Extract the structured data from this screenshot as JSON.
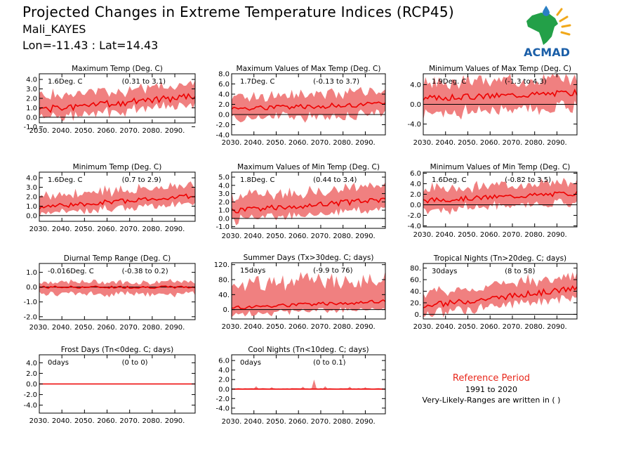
{
  "header": {
    "title": "Projected Changes in Extreme Temperature Indices (RCP45)",
    "location": "Mali_KAYES",
    "coordinates": "Lon=-11.43 : Lat=14.43"
  },
  "logo": {
    "label": "ACMAD"
  },
  "reference": {
    "title": "Reference Period",
    "years": "1991 to 2020",
    "note": "Very-Likely-Ranges are written in ( )"
  },
  "colors": {
    "band": "#f08080",
    "median": "#ee0000",
    "zero_line": "#000000",
    "ref_title": "#e8281c"
  },
  "chart_data": [
    {
      "type": "area",
      "title": "Maximum Temp (Deg. C)",
      "summary": "1.6Deg. C",
      "range": "(0.31 to 3.1)",
      "xlim": [
        2030,
        2099
      ],
      "ylim": [
        -0.6,
        4.6
      ],
      "yticks": [
        -1.0,
        0.0,
        1.0,
        2.0,
        3.0,
        4.0
      ],
      "x_start": 2030,
      "x_end": 2099,
      "xticks": [
        2030,
        2040,
        2050,
        2060,
        2070,
        2080,
        2090
      ],
      "median_start": 0.8,
      "median_end": 2.2,
      "band_low": 0.9,
      "band_high": 1.3,
      "wiggle": 0.35,
      "seed": 1
    },
    {
      "type": "area",
      "title": "Maximum Values of Max Temp (Deg. C)",
      "summary": "1.7Deg. C",
      "range": "(-0.13 to 3.7)",
      "xlim": [
        2030,
        2099
      ],
      "ylim": [
        -4.0,
        8.0
      ],
      "yticks": [
        -4.0,
        -2.0,
        0.0,
        2.0,
        4.0,
        6.0,
        8.0
      ],
      "x_start": 2030,
      "x_end": 2099,
      "xticks": [
        2030,
        2040,
        2050,
        2060,
        2070,
        2080,
        2090
      ],
      "median_start": 1.2,
      "median_end": 2.0,
      "band_low": 2.0,
      "band_high": 2.4,
      "wiggle": 0.5,
      "seed": 2
    },
    {
      "type": "area",
      "title": "Minimum Values of Max Temp (Deg. C)",
      "summary": "1.9Deg. C",
      "range": "(-1.3 to 4.3)",
      "xlim": [
        2030,
        2099
      ],
      "ylim": [
        -6.2,
        6.2
      ],
      "yticks": [
        -4.0,
        0.0,
        4.0
      ],
      "x_start": 2030,
      "x_end": 2099,
      "xticks": [
        2030,
        2040,
        2050,
        2060,
        2070,
        2080,
        2090
      ],
      "median_start": 1.2,
      "median_end": 2.4,
      "band_low": 3.0,
      "band_high": 3.0,
      "wiggle": 0.6,
      "seed": 3
    },
    {
      "type": "area",
      "title": "Minimum Temp (Deg. C)",
      "summary": "1.6Deg. C",
      "range": "(0.7 to 2.9)",
      "xlim": [
        2030,
        2099
      ],
      "ylim": [
        -0.6,
        4.6
      ],
      "yticks": [
        0.0,
        1.0,
        2.0,
        3.0,
        4.0
      ],
      "x_start": 2030,
      "x_end": 2099,
      "xticks": [
        2030,
        2040,
        2050,
        2060,
        2070,
        2080,
        2090
      ],
      "median_start": 0.9,
      "median_end": 2.1,
      "band_low": 0.7,
      "band_high": 1.2,
      "wiggle": 0.25,
      "seed": 4
    },
    {
      "type": "area",
      "title": "Maximum Values of Min Temp (Deg. C)",
      "summary": "1.8Deg. C",
      "range": "(0.44 to 3.4)",
      "xlim": [
        2030,
        2099
      ],
      "ylim": [
        -1.2,
        5.6
      ],
      "yticks": [
        -1.0,
        0.0,
        1.0,
        2.0,
        3.0,
        4.0,
        5.0
      ],
      "x_start": 2030,
      "x_end": 2099,
      "xticks": [
        2030,
        2040,
        2050,
        2060,
        2070,
        2080,
        2090
      ],
      "median_start": 0.9,
      "median_end": 2.3,
      "band_low": 1.1,
      "band_high": 1.6,
      "wiggle": 0.35,
      "seed": 5
    },
    {
      "type": "area",
      "title": "Minimum Values of Min Temp (Deg. C)",
      "summary": "1.6Deg. C",
      "range": "(-0.82 to 3.5)",
      "xlim": [
        2030,
        2099
      ],
      "ylim": [
        -4.2,
        6.2
      ],
      "yticks": [
        -4.0,
        -2.0,
        0.0,
        2.0,
        4.0,
        6.0
      ],
      "x_start": 2030,
      "x_end": 2099,
      "xticks": [
        2030,
        2040,
        2050,
        2060,
        2070,
        2080,
        2090
      ],
      "median_start": 0.8,
      "median_end": 2.2,
      "band_low": 1.8,
      "band_high": 2.2,
      "wiggle": 0.45,
      "seed": 6
    },
    {
      "type": "area",
      "title": "Diurnal Temp Range (Deg. C)",
      "summary": "-0.016Deg. C",
      "range": "(-0.38 to 0.2)",
      "xlim": [
        2030,
        2099
      ],
      "ylim": [
        -2.2,
        1.6
      ],
      "yticks": [
        -2.0,
        -1.0,
        0.0,
        1.0
      ],
      "x_start": 2030,
      "x_end": 2099,
      "xticks": [
        2030,
        2040,
        2050,
        2060,
        2070,
        2080,
        2090
      ],
      "median_start": 0.0,
      "median_end": 0.0,
      "band_low": 0.45,
      "band_high": 0.35,
      "wiggle": 0.08,
      "seed": 7
    },
    {
      "type": "area",
      "title": "Summer Days (Tx>30deg. C; days)",
      "summary": "15days",
      "range": "(-9.9 to 76)",
      "xlim": [
        2030,
        2099
      ],
      "ylim": [
        -25,
        125
      ],
      "yticks": [
        0,
        40,
        80,
        120
      ],
      "x_start": 2030,
      "x_end": 2099,
      "xticks": [
        2030,
        2040,
        2050,
        2060,
        2070,
        2080,
        2090
      ],
      "median_start": 5,
      "median_end": 22,
      "band_low": 18,
      "band_high": 60,
      "wiggle": 5,
      "seed": 8
    },
    {
      "type": "area",
      "title": "Tropical Nights (Tn>20deg. C; days)",
      "summary": "30days",
      "range": "(8 to 58)",
      "xlim": [
        2030,
        2099
      ],
      "ylim": [
        -8,
        88
      ],
      "yticks": [
        0,
        20,
        40,
        60,
        80
      ],
      "x_start": 2030,
      "x_end": 2099,
      "xticks": [
        2030,
        2040,
        2050,
        2060,
        2070,
        2080,
        2090
      ],
      "median_start": 14,
      "median_end": 45,
      "band_low": 14,
      "band_high": 22,
      "wiggle": 5,
      "seed": 9
    },
    {
      "type": "area",
      "title": "Frost Days (Tn<0deg. C; days)",
      "summary": "0days",
      "range": "(0 to 0)",
      "xlim": [
        2030,
        2099
      ],
      "ylim": [
        -5.5,
        5.5
      ],
      "yticks": [
        -4.0,
        -2.0,
        0.0,
        2.0,
        4.0
      ],
      "x_start": 2030,
      "x_end": 2099,
      "xticks": [
        2030,
        2040,
        2050,
        2060,
        2070,
        2080,
        2090
      ],
      "median_start": 0,
      "median_end": 0,
      "band_low": 0,
      "band_high": 0,
      "wiggle": 0,
      "seed": 10
    },
    {
      "type": "area",
      "title": "Cool Nights (Tn<10deg. C; days)",
      "summary": "0days",
      "range": "(0 to 0.1)",
      "xlim": [
        2030,
        2099
      ],
      "ylim": [
        -5.2,
        7.2
      ],
      "yticks": [
        -4.0,
        -2.0,
        0.0,
        2.0,
        4.0,
        6.0
      ],
      "x_start": 2030,
      "x_end": 2099,
      "xticks": [
        2030,
        2040,
        2050,
        2060,
        2070,
        2080,
        2090
      ],
      "median_start": 0,
      "median_end": 0,
      "band_low": 0,
      "band_high": 0.15,
      "wiggle": 0,
      "seed": 11,
      "spikes": [
        [
          2041,
          0.6
        ],
        [
          2048,
          0.4
        ],
        [
          2062,
          0.5
        ],
        [
          2067,
          2.0
        ],
        [
          2072,
          0.6
        ],
        [
          2083,
          0.5
        ],
        [
          2090,
          0.4
        ]
      ]
    }
  ]
}
